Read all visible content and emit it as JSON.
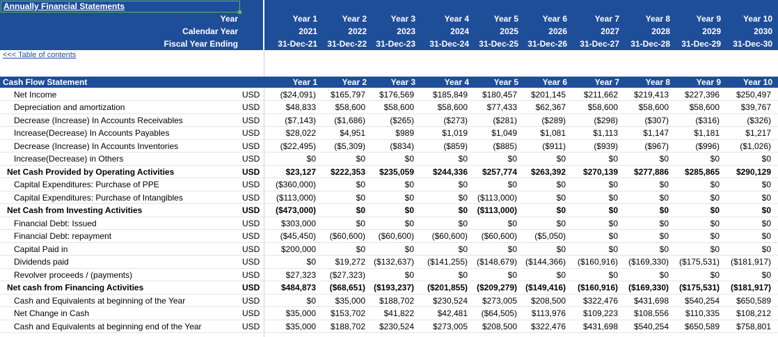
{
  "sheet_title": "Annually Financial Statements",
  "header_labels": [
    "Year",
    "Calendar Year",
    "Fiscal Year Ending"
  ],
  "years": [
    "Year 1",
    "Year 2",
    "Year 3",
    "Year 4",
    "Year 5",
    "Year 6",
    "Year 7",
    "Year 8",
    "Year 9",
    "Year 10"
  ],
  "calendar_years": [
    "2021",
    "2022",
    "2023",
    "2024",
    "2025",
    "2026",
    "2027",
    "2028",
    "2029",
    "2030"
  ],
  "fiscal_year_ending": [
    "31-Dec-21",
    "31-Dec-22",
    "31-Dec-23",
    "31-Dec-24",
    "31-Dec-25",
    "31-Dec-26",
    "31-Dec-27",
    "31-Dec-28",
    "31-Dec-29",
    "31-Dec-30"
  ],
  "toc_link": "<<< Table of contents",
  "section_title": "Cash Flow Statement",
  "rows": [
    {
      "label": "Net Income",
      "currency": "USD",
      "bold": false,
      "values": [
        "($24,091)",
        "$165,797",
        "$176,569",
        "$185,849",
        "$180,457",
        "$201,145",
        "$211,662",
        "$219,413",
        "$227,396",
        "$250,497"
      ]
    },
    {
      "label": "Depreciation and amortization",
      "currency": "USD",
      "bold": false,
      "values": [
        "$48,833",
        "$58,600",
        "$58,600",
        "$58,600",
        "$77,433",
        "$62,367",
        "$58,600",
        "$58,600",
        "$58,600",
        "$39,767"
      ]
    },
    {
      "label": "Decrease (Increase) In Accounts Receivables",
      "currency": "USD",
      "bold": false,
      "values": [
        "($7,143)",
        "($1,686)",
        "($265)",
        "($273)",
        "($281)",
        "($289)",
        "($298)",
        "($307)",
        "($316)",
        "($326)"
      ]
    },
    {
      "label": "Increase(Decrease) In Accounts Payables",
      "currency": "USD",
      "bold": false,
      "values": [
        "$28,022",
        "$4,951",
        "$989",
        "$1,019",
        "$1,049",
        "$1,081",
        "$1,113",
        "$1,147",
        "$1,181",
        "$1,217"
      ]
    },
    {
      "label": "Decrease (Increase) In Accounts Inventories",
      "currency": "USD",
      "bold": false,
      "values": [
        "($22,495)",
        "($5,309)",
        "($834)",
        "($859)",
        "($885)",
        "($911)",
        "($939)",
        "($967)",
        "($996)",
        "($1,026)"
      ]
    },
    {
      "label": "Increase(Decrease) in Others",
      "currency": "USD",
      "bold": false,
      "values": [
        "$0",
        "$0",
        "$0",
        "$0",
        "$0",
        "$0",
        "$0",
        "$0",
        "$0",
        "$0"
      ]
    },
    {
      "label": "Net Cash Provided by Operating Activities",
      "currency": "USD",
      "bold": true,
      "values": [
        "$23,127",
        "$222,353",
        "$235,059",
        "$244,336",
        "$257,774",
        "$263,392",
        "$270,139",
        "$277,886",
        "$285,865",
        "$290,129"
      ]
    },
    {
      "label": "Capital Expenditures: Purchase of PPE",
      "currency": "USD",
      "bold": false,
      "values": [
        "($360,000)",
        "$0",
        "$0",
        "$0",
        "$0",
        "$0",
        "$0",
        "$0",
        "$0",
        "$0"
      ]
    },
    {
      "label": "Capital Expenditures: Purchase of Intangibles",
      "currency": "USD",
      "bold": false,
      "values": [
        "($113,000)",
        "$0",
        "$0",
        "$0",
        "($113,000)",
        "$0",
        "$0",
        "$0",
        "$0",
        "$0"
      ]
    },
    {
      "label": "Net Cash from Investing Activities",
      "currency": "USD",
      "bold": true,
      "values": [
        "($473,000)",
        "$0",
        "$0",
        "$0",
        "($113,000)",
        "$0",
        "$0",
        "$0",
        "$0",
        "$0"
      ]
    },
    {
      "label": "Financial Debt: Issued",
      "currency": "USD",
      "bold": false,
      "values": [
        "$303,000",
        "$0",
        "$0",
        "$0",
        "$0",
        "$0",
        "$0",
        "$0",
        "$0",
        "$0"
      ]
    },
    {
      "label": "Financial Debt: repayment",
      "currency": "USD",
      "bold": false,
      "values": [
        "($45,450)",
        "($60,600)",
        "($60,600)",
        "($60,600)",
        "($60,600)",
        "($5,050)",
        "$0",
        "$0",
        "$0",
        "$0"
      ]
    },
    {
      "label": "Capital Paid in",
      "currency": "USD",
      "bold": false,
      "values": [
        "$200,000",
        "$0",
        "$0",
        "$0",
        "$0",
        "$0",
        "$0",
        "$0",
        "$0",
        "$0"
      ]
    },
    {
      "label": "Dividends paid",
      "currency": "USD",
      "bold": false,
      "values": [
        "$0",
        "$19,272",
        "($132,637)",
        "($141,255)",
        "($148,679)",
        "($144,366)",
        "($160,916)",
        "($169,330)",
        "($175,531)",
        "($181,917)"
      ]
    },
    {
      "label": "Revolver proceeds / (payments)",
      "currency": "USD",
      "bold": false,
      "values": [
        "$27,323",
        "($27,323)",
        "$0",
        "$0",
        "$0",
        "$0",
        "$0",
        "$0",
        "$0",
        "$0"
      ]
    },
    {
      "label": "Net cash from Financing Activities",
      "currency": "USD",
      "bold": true,
      "values": [
        "$484,873",
        "($68,651)",
        "($193,237)",
        "($201,855)",
        "($209,279)",
        "($149,416)",
        "($160,916)",
        "($169,330)",
        "($175,531)",
        "($181,917)"
      ]
    },
    {
      "label": "Cash and Equivalents at beginning of the Year",
      "currency": "USD",
      "bold": false,
      "values": [
        "$0",
        "$35,000",
        "$188,702",
        "$230,524",
        "$273,005",
        "$208,500",
        "$322,476",
        "$431,698",
        "$540,254",
        "$650,589"
      ]
    },
    {
      "label": "Net Change in Cash",
      "currency": "USD",
      "bold": false,
      "values": [
        "$35,000",
        "$153,702",
        "$41,822",
        "$42,481",
        "($64,505)",
        "$113,976",
        "$109,223",
        "$108,556",
        "$110,335",
        "$108,212"
      ]
    },
    {
      "label": "Cash and Equivalents at beginning end of the Year",
      "currency": "USD",
      "bold": false,
      "values": [
        "$35,000",
        "$188,702",
        "$230,524",
        "$273,005",
        "$208,500",
        "$322,476",
        "$431,698",
        "$540,254",
        "$650,589",
        "$758,801"
      ]
    }
  ]
}
